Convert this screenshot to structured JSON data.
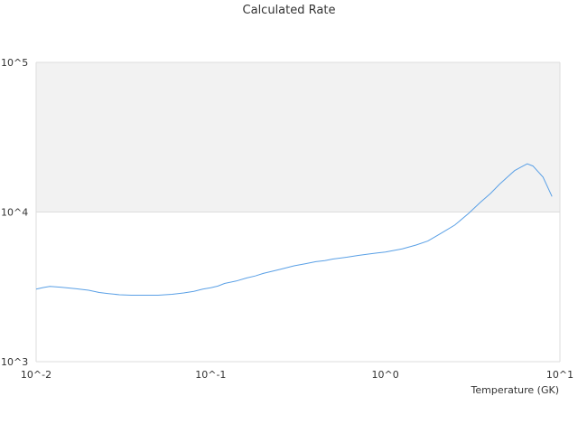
{
  "chart_data": {
    "type": "line",
    "title": "Calculated Rate",
    "xlabel": "Temperature (GK)",
    "ylabel": "",
    "x_scale": "log",
    "y_scale": "log",
    "xlim": [
      0.01,
      10
    ],
    "ylim": [
      1000,
      100000
    ],
    "x_ticks": [
      {
        "value": 0.01,
        "label": "10^-2"
      },
      {
        "value": 0.1,
        "label": "10^-1"
      },
      {
        "value": 1,
        "label": "10^0"
      },
      {
        "value": 10,
        "label": "10^1"
      }
    ],
    "y_ticks": [
      {
        "value": 1000,
        "label": "10^3"
      },
      {
        "value": 10000,
        "label": "10^4"
      },
      {
        "value": 100000,
        "label": "10^5"
      }
    ],
    "grid": false,
    "legend": "none",
    "shaded_band": {
      "y_from": 10000,
      "y_to": 100000,
      "color": "#f2f2f2"
    },
    "series": [
      {
        "color": "#5aa0e6",
        "x": [
          0.01,
          0.011,
          0.012,
          0.014,
          0.017,
          0.02,
          0.023,
          0.026,
          0.03,
          0.035,
          0.04,
          0.05,
          0.06,
          0.07,
          0.08,
          0.09,
          0.1,
          0.11,
          0.12,
          0.14,
          0.16,
          0.18,
          0.2,
          0.25,
          0.3,
          0.35,
          0.4,
          0.45,
          0.5,
          0.6,
          0.7,
          0.8,
          0.9,
          1.0,
          1.25,
          1.5,
          1.75,
          2.0,
          2.5,
          3.0,
          3.5,
          4.0,
          4.5,
          5.0,
          5.5,
          6.0,
          6.5,
          7.0,
          8.0,
          9.0
        ],
        "values": [
          3050,
          3130,
          3180,
          3140,
          3070,
          3000,
          2900,
          2850,
          2800,
          2780,
          2780,
          2780,
          2820,
          2880,
          2950,
          3050,
          3120,
          3200,
          3330,
          3460,
          3620,
          3740,
          3890,
          4140,
          4370,
          4520,
          4660,
          4730,
          4850,
          4990,
          5130,
          5240,
          5330,
          5410,
          5680,
          6020,
          6400,
          7000,
          8180,
          9800,
          11600,
          13300,
          15300,
          17100,
          18900,
          20000,
          21000,
          20300,
          17100,
          12700
        ]
      }
    ]
  }
}
